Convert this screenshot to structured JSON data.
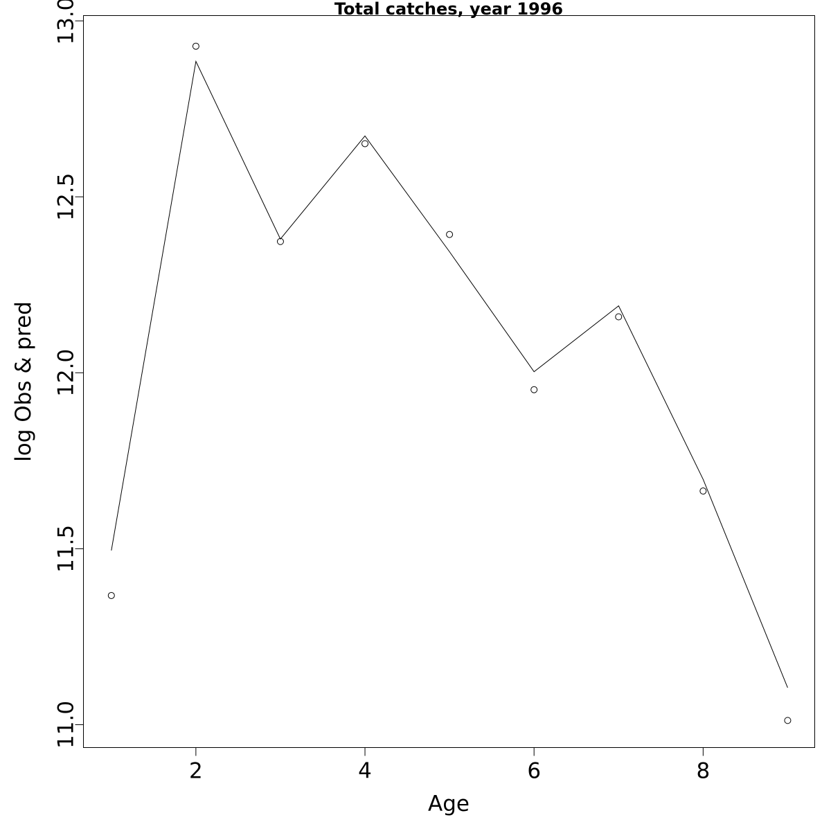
{
  "chart_data": {
    "type": "line",
    "title": "Total catches, year 1996",
    "xlabel": "Age",
    "ylabel": "log Obs & pred",
    "xlim": [
      0.67,
      9.32
    ],
    "ylim": [
      10.935,
      13.015
    ],
    "x_ticks": [
      2,
      4,
      6,
      8
    ],
    "x_tick_labels": [
      "2",
      "4",
      "6",
      "8"
    ],
    "y_ticks": [
      11.0,
      11.5,
      12.0,
      12.5,
      13.0
    ],
    "y_tick_labels": [
      "11.0",
      "11.5",
      "12.0",
      "12.5",
      "13.0"
    ],
    "grid": false,
    "legend": "none",
    "series": [
      {
        "style": "points",
        "x": [
          1,
          2,
          3,
          4,
          5,
          6,
          7,
          8,
          9
        ],
        "y": [
          11.367,
          12.928,
          12.373,
          12.651,
          12.393,
          11.952,
          12.159,
          11.664,
          11.012
        ]
      },
      {
        "style": "line",
        "x": [
          1,
          2,
          3,
          4,
          5,
          6,
          7,
          8,
          9
        ],
        "y": [
          11.495,
          12.885,
          12.38,
          12.673,
          12.344,
          12.003,
          12.19,
          11.697,
          11.105
        ]
      }
    ],
    "colors": {
      "line": "#000000",
      "points": "#000000",
      "axes": "#000000"
    }
  }
}
